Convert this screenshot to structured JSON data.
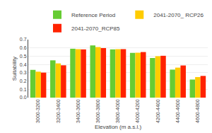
{
  "chart_data": {
    "type": "bar",
    "categories": [
      "3000-3200",
      "3200-3400",
      "3400-3600",
      "3600-3800",
      "3800-4000",
      "4000-4200",
      "4200-4400",
      "4400-4600",
      "4600-4800"
    ],
    "series": [
      {
        "name": "Reference Period",
        "color": "#66cc33",
        "values": [
          0.335,
          0.45,
          0.59,
          0.63,
          0.582,
          0.54,
          0.478,
          0.338,
          0.218
        ]
      },
      {
        "name": "2041-2070_ RCP26",
        "color": "#ffcc00",
        "values": [
          0.313,
          0.413,
          0.585,
          0.61,
          0.585,
          0.542,
          0.5,
          0.362,
          0.248
        ]
      },
      {
        "name": "2041-2070_RCP85",
        "color": "#ff2200",
        "values": [
          0.302,
          0.39,
          0.582,
          0.598,
          0.585,
          0.55,
          0.505,
          0.388,
          0.262
        ]
      }
    ],
    "xlabel": "Elevation (m a.s.l.)",
    "ylabel": "Suitability",
    "ylim": [
      0.0,
      0.7
    ],
    "yticks": [
      {
        "value": 0,
        "label": "0.0"
      },
      0.1,
      0.2,
      0.3,
      0.4,
      0.5,
      0.6,
      0.7
    ],
    "grid": true,
    "legend": "upper right"
  }
}
